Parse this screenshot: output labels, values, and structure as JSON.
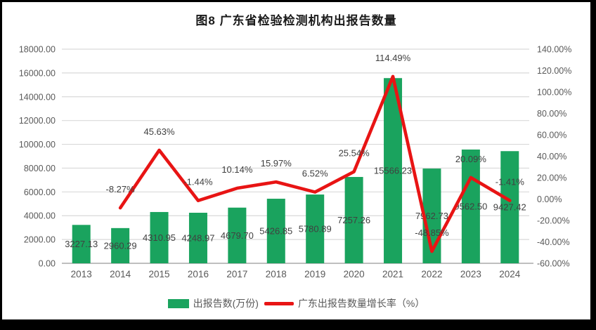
{
  "page": {
    "title": "图8  广东省检验检测机构出报告数量"
  },
  "legend": {
    "bar_label": "出报告数(万份)",
    "line_label": "广东出报告数量增长率（%）"
  },
  "colors": {
    "bar": "#1aa35e",
    "line": "#e81414",
    "grid": "#d9d9d9",
    "axis_line": "#bfbfbf",
    "tick_text": "#595959",
    "data_label_text": "#404040",
    "title_text": "#1a1a1a"
  },
  "chart_data": {
    "type": "bar+line-combo",
    "title": "图8  广东省检验检测机构出报告数量",
    "categories": [
      "2013",
      "2014",
      "2015",
      "2016",
      "2017",
      "2018",
      "2019",
      "2020",
      "2021",
      "2022",
      "2023",
      "2024"
    ],
    "series": [
      {
        "name": "出报告数(万份)",
        "type": "bar",
        "axis": "left",
        "values": [
          3227.13,
          2960.29,
          4310.95,
          4248.97,
          4679.7,
          5426.85,
          5780.89,
          7257.26,
          15566.23,
          7962.73,
          9562.5,
          9427.42
        ],
        "labels": [
          "3227.13",
          "2960.29",
          "4310.95",
          "4248.97",
          "4679.70",
          "5426.85",
          "5780.89",
          "7257.26",
          "15566.23",
          "7962.73",
          "9562.50",
          "9427.42"
        ]
      },
      {
        "name": "广东出报告数量增长率（%）",
        "type": "line",
        "axis": "right",
        "values": [
          null,
          -8.27,
          45.63,
          -1.44,
          10.14,
          15.97,
          6.52,
          25.54,
          114.49,
          -48.85,
          20.09,
          -1.41
        ],
        "labels": [
          null,
          "-8.27%",
          "45.63%",
          "-1.44%",
          "10.14%",
          "15.97%",
          "6.52%",
          "25.54%",
          "114.49%",
          "-48.85%",
          "20.09%",
          "-1.41%"
        ]
      }
    ],
    "left_axis": {
      "min": 0,
      "max": 18000,
      "step": 2000,
      "ticks": [
        "0.00",
        "2000.00",
        "4000.00",
        "6000.00",
        "8000.00",
        "10000.00",
        "12000.00",
        "14000.00",
        "16000.00",
        "18000.00"
      ]
    },
    "right_axis": {
      "min": -60,
      "max": 140,
      "step": 20,
      "ticks": [
        "-60.00%",
        "-40.00%",
        "-20.00%",
        "0.00%",
        "20.00%",
        "40.00%",
        "60.00%",
        "80.00%",
        "100.00%",
        "120.00%",
        "140.00%"
      ]
    },
    "grid": true,
    "legend_position": "bottom"
  }
}
